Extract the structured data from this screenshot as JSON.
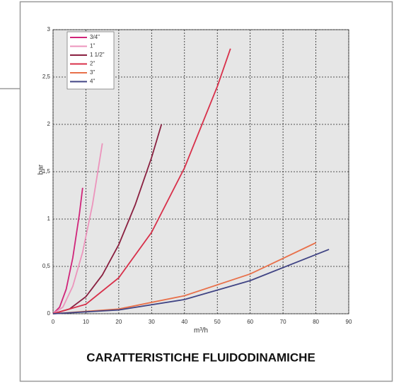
{
  "chart_data": {
    "type": "line",
    "title": "CARATTERISTICHE FLUIDODINAMICHE",
    "x_label": "m³/h",
    "y_label": "bar",
    "xlim": [
      0,
      90
    ],
    "xticks": [
      0,
      10,
      20,
      30,
      40,
      50,
      60,
      70,
      80,
      90
    ],
    "ylim": [
      0,
      3
    ],
    "yticks": [
      0,
      {
        "value": 0.5,
        "label": "0,5"
      },
      1,
      {
        "value": 1.5,
        "label": "1,5"
      },
      2,
      {
        "value": 2.5,
        "label": "2,5"
      },
      3
    ],
    "grid": true,
    "legend": "upper left",
    "series": [
      {
        "name": "3/4\"",
        "color": "#d0257a",
        "x": [
          0,
          2,
          4,
          6,
          8,
          9
        ],
        "values": [
          0,
          0.07,
          0.26,
          0.59,
          1.05,
          1.33
        ]
      },
      {
        "name": "1\"",
        "color": "#ec94bc",
        "x": [
          0,
          3,
          6,
          9,
          12,
          15
        ],
        "values": [
          0,
          0.07,
          0.29,
          0.65,
          1.15,
          1.8
        ]
      },
      {
        "name": "1 1/2\"",
        "color": "#8a2040",
        "x": [
          0,
          5,
          10,
          15,
          20,
          25,
          30,
          33
        ],
        "values": [
          0,
          0.05,
          0.18,
          0.41,
          0.73,
          1.15,
          1.65,
          2.0
        ]
      },
      {
        "name": "2\"",
        "color": "#d8304a",
        "x": [
          0,
          10,
          20,
          30,
          40,
          50,
          54
        ],
        "values": [
          0,
          0.1,
          0.38,
          0.86,
          1.54,
          2.4,
          2.8
        ]
      },
      {
        "name": "3\"",
        "color": "#e8704a",
        "x": [
          0,
          20,
          40,
          60,
          80
        ],
        "values": [
          0,
          0.05,
          0.19,
          0.42,
          0.75
        ]
      },
      {
        "name": "4\"",
        "color": "#404484",
        "x": [
          0,
          20,
          40,
          60,
          84
        ],
        "values": [
          0,
          0.04,
          0.15,
          0.35,
          0.68
        ]
      }
    ]
  }
}
